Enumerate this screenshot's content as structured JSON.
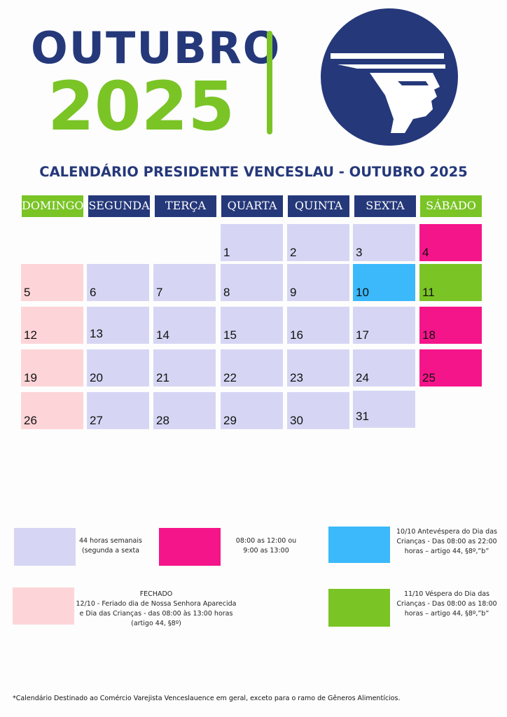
{
  "header": {
    "month": "OUTUBRO",
    "year": "2025",
    "subtitle": "CALENDÁRIO PRESIDENTE VENCESLAU - OUTUBRO 2025",
    "logo_icon": "head-profile-logo-icon"
  },
  "colors": {
    "navy": "#25387a",
    "green": "#7ac426",
    "lavender": "#d6d6f4",
    "pink": "#f5158a",
    "lightpink": "#fdd5d8",
    "blue": "#3bb9fb"
  },
  "weekdays": [
    "DOMINGO",
    "SEGUNDA",
    "TERÇA",
    "QUARTA",
    "QUINTA",
    "SEXTA",
    "SÁBADO"
  ],
  "days": [
    "1",
    "2",
    "3",
    "4",
    "5",
    "6",
    "7",
    "8",
    "9",
    "10",
    "11",
    "12",
    "13",
    "14",
    "15",
    "16",
    "17",
    "18",
    "19",
    "20",
    "21",
    "22",
    "23",
    "24",
    "25",
    "26",
    "27",
    "28",
    "29",
    "30",
    "31"
  ],
  "legend": {
    "l1": {
      "line1": "44 horas semanais",
      "line2": "(segunda a sexta"
    },
    "l2": {
      "line1": "08:00 as 12:00 ou",
      "line2": "9:00 as 13:00"
    },
    "l3": {
      "line1": "10/10 Antevéspera do Dia das",
      "line2": "Crianças - Das 08:00 as 22:00",
      "line3": "horas  – artigo 44, §8º,”b”"
    },
    "l4": {
      "line1": "FECHADO",
      "line2": "12/10 - Feriado dia de Nossa Senhora Aparecida",
      "line3": "e Dia das Crianças - das 08:00 às 13:00 horas",
      "line4": "(artigo 44, §8º)"
    },
    "l5": {
      "line1": "11/10 Véspera do Dia das",
      "line2": "Crianças - Das 08:00 as 18:00",
      "line3": "horas  – artigo 44, §8º,”b”"
    }
  },
  "footer": "*Calendário Destinado ao Comércio Varejista Venceslauence em geral, exceto para o ramo de Gêneros Alimentícios."
}
